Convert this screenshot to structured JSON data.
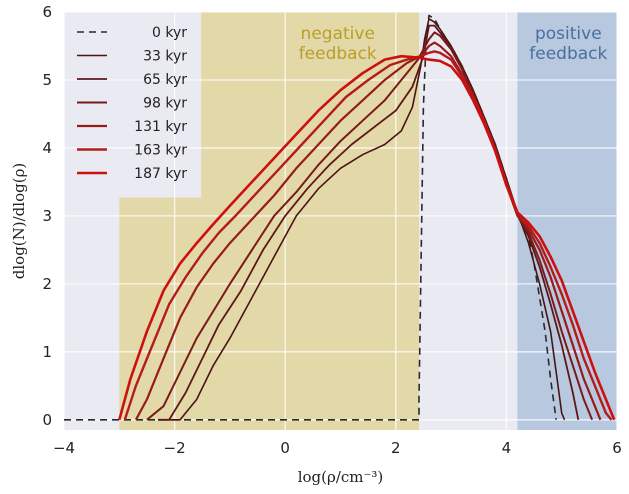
{
  "chart_data": {
    "type": "line",
    "xlabel": "log(ρ/cm⁻³)",
    "ylabel": "dlog(N)/dlog(ρ)",
    "xlim": [
      -4,
      6
    ],
    "ylim": [
      -0.15,
      6
    ],
    "xticks": [
      "−4",
      "−2",
      "0",
      "2",
      "4",
      "6"
    ],
    "yticks": [
      "0",
      "1",
      "2",
      "3",
      "4",
      "5",
      "6"
    ],
    "grid": true,
    "legend_position": "top-left",
    "shaded_regions": [
      {
        "label": "negative feedback",
        "color": "#e3d8a8",
        "text_color": "#b8a02a",
        "parts": [
          {
            "x0": -3.0,
            "x1": -1.52,
            "y0": -0.15,
            "y1": 3.27
          },
          {
            "x0": -1.52,
            "x1": 2.42,
            "y0": -0.15,
            "y1": 6
          }
        ]
      },
      {
        "label": "positive feedback",
        "color": "#b8c8df",
        "text_color": "#4a6fa0",
        "parts": [
          {
            "x0": 4.2,
            "x1": 6.0,
            "y0": -0.15,
            "y1": 6
          }
        ]
      }
    ],
    "annotations": [
      {
        "lines": [
          "negative",
          "feedback"
        ],
        "x": 0.95,
        "y": 5.6,
        "color": "#b8a02a"
      },
      {
        "lines": [
          "positive",
          "feedback"
        ],
        "x": 5.12,
        "y": 5.6,
        "color": "#4a6fa0"
      }
    ],
    "series": [
      {
        "name": "0 kyr",
        "color": "#2a2a2a",
        "width": 1.6,
        "dash": "7,5",
        "x": [
          -4.0,
          2.42,
          2.42,
          2.5,
          2.55,
          2.6,
          2.7,
          2.8,
          3.0,
          3.2,
          3.4,
          3.6,
          3.8,
          4.0,
          4.2,
          4.4,
          4.5,
          4.6,
          4.7,
          4.8,
          4.9
        ],
        "y": [
          0,
          0,
          0.3,
          4.6,
          5.6,
          5.95,
          5.9,
          5.75,
          5.5,
          5.2,
          4.85,
          4.45,
          4.05,
          3.55,
          3.0,
          2.7,
          2.3,
          1.8,
          1.3,
          0.6,
          0
        ]
      },
      {
        "name": "33 kyr",
        "color": "#4a1414",
        "width": 1.6,
        "x": [
          -2.1,
          -1.9,
          -1.6,
          -1.3,
          -1.0,
          -0.6,
          -0.2,
          0.2,
          0.6,
          1.0,
          1.4,
          1.8,
          2.1,
          2.3,
          2.45,
          2.52,
          2.6,
          2.7,
          2.8,
          3.0,
          3.2,
          3.4,
          3.6,
          3.8,
          4.0,
          4.2,
          4.4,
          4.6,
          4.8,
          4.9,
          5.0,
          5.05
        ],
        "y": [
          0,
          0,
          0.3,
          0.8,
          1.2,
          1.8,
          2.4,
          3.0,
          3.4,
          3.7,
          3.9,
          4.05,
          4.25,
          4.6,
          5.2,
          5.6,
          5.9,
          5.85,
          5.75,
          5.5,
          5.2,
          4.85,
          4.45,
          4.05,
          3.55,
          3.05,
          2.6,
          2.0,
          1.3,
          0.7,
          0.1,
          0
        ]
      },
      {
        "name": "65 kyr",
        "color": "#5e1717",
        "width": 1.8,
        "x": [
          -2.3,
          -2.1,
          -1.8,
          -1.5,
          -1.2,
          -0.8,
          -0.4,
          0.0,
          0.4,
          0.8,
          1.2,
          1.6,
          2.0,
          2.3,
          2.5,
          2.6,
          2.7,
          2.8,
          3.0,
          3.2,
          3.4,
          3.6,
          3.8,
          4.0,
          4.2,
          4.4,
          4.6,
          4.8,
          5.0,
          5.2,
          5.3
        ],
        "y": [
          0,
          0,
          0.4,
          0.9,
          1.4,
          1.9,
          2.5,
          3.0,
          3.4,
          3.75,
          4.05,
          4.3,
          4.55,
          4.9,
          5.35,
          5.8,
          5.8,
          5.7,
          5.48,
          5.18,
          4.82,
          4.42,
          4.0,
          3.5,
          3.05,
          2.7,
          2.25,
          1.7,
          1.1,
          0.4,
          0
        ]
      },
      {
        "name": "98 kyr",
        "color": "#7a1a1a",
        "width": 2.0,
        "x": [
          -2.5,
          -2.2,
          -1.9,
          -1.6,
          -1.3,
          -1.0,
          -0.6,
          -0.2,
          0.2,
          0.6,
          1.0,
          1.4,
          1.8,
          2.1,
          2.4,
          2.6,
          2.7,
          2.8,
          3.0,
          3.2,
          3.4,
          3.6,
          3.8,
          4.0,
          4.2,
          4.4,
          4.6,
          4.8,
          5.0,
          5.2,
          5.4,
          5.55
        ],
        "y": [
          0,
          0.2,
          0.7,
          1.2,
          1.6,
          2.0,
          2.5,
          3.0,
          3.35,
          3.75,
          4.1,
          4.4,
          4.7,
          5.0,
          5.3,
          5.6,
          5.7,
          5.65,
          5.45,
          5.15,
          4.8,
          4.4,
          3.98,
          3.48,
          3.02,
          2.75,
          2.35,
          1.85,
          1.3,
          0.8,
          0.3,
          0
        ]
      },
      {
        "name": "131 kyr",
        "color": "#981b1b",
        "width": 2.2,
        "x": [
          -2.7,
          -2.5,
          -2.2,
          -1.9,
          -1.6,
          -1.3,
          -1.0,
          -0.6,
          -0.2,
          0.2,
          0.6,
          1.0,
          1.4,
          1.8,
          2.2,
          2.45,
          2.6,
          2.7,
          2.8,
          3.0,
          3.2,
          3.4,
          3.6,
          3.8,
          4.0,
          4.2,
          4.4,
          4.6,
          4.8,
          5.0,
          5.2,
          5.4,
          5.6,
          5.7
        ],
        "y": [
          0,
          0.3,
          0.9,
          1.5,
          1.95,
          2.3,
          2.6,
          2.95,
          3.3,
          3.7,
          4.05,
          4.4,
          4.7,
          5.0,
          5.25,
          5.35,
          5.5,
          5.55,
          5.5,
          5.35,
          5.08,
          4.75,
          4.38,
          3.95,
          3.45,
          3.0,
          2.8,
          2.5,
          2.1,
          1.6,
          1.1,
          0.6,
          0.2,
          0
        ]
      },
      {
        "name": "163 kyr",
        "color": "#b31c1c",
        "width": 2.4,
        "x": [
          -2.9,
          -2.7,
          -2.4,
          -2.1,
          -1.8,
          -1.5,
          -1.2,
          -0.9,
          -0.5,
          -0.1,
          0.3,
          0.7,
          1.1,
          1.5,
          1.9,
          2.2,
          2.45,
          2.6,
          2.7,
          2.8,
          3.0,
          3.2,
          3.4,
          3.6,
          3.8,
          4.0,
          4.2,
          4.4,
          4.6,
          4.8,
          5.0,
          5.2,
          5.4,
          5.6,
          5.8,
          5.9
        ],
        "y": [
          0,
          0.5,
          1.1,
          1.7,
          2.1,
          2.45,
          2.75,
          3.0,
          3.35,
          3.7,
          4.05,
          4.4,
          4.75,
          5.0,
          5.22,
          5.3,
          5.35,
          5.4,
          5.42,
          5.4,
          5.3,
          5.05,
          4.75,
          4.4,
          3.98,
          3.48,
          3.05,
          2.85,
          2.6,
          2.25,
          1.85,
          1.4,
          0.9,
          0.5,
          0.1,
          0
        ]
      },
      {
        "name": "187 kyr",
        "color": "#cc1010",
        "width": 2.6,
        "x": [
          -3.0,
          -2.8,
          -2.5,
          -2.2,
          -1.9,
          -1.6,
          -1.3,
          -1.0,
          -0.6,
          -0.2,
          0.2,
          0.6,
          1.0,
          1.4,
          1.8,
          2.1,
          2.4,
          2.6,
          2.8,
          3.0,
          3.2,
          3.4,
          3.6,
          3.8,
          4.0,
          4.2,
          4.4,
          4.6,
          4.8,
          5.0,
          5.2,
          5.4,
          5.6,
          5.8,
          5.95
        ],
        "y": [
          0,
          0.6,
          1.3,
          1.9,
          2.3,
          2.6,
          2.88,
          3.15,
          3.5,
          3.85,
          4.2,
          4.55,
          4.85,
          5.1,
          5.3,
          5.35,
          5.33,
          5.3,
          5.28,
          5.2,
          5.0,
          4.7,
          4.35,
          3.95,
          3.45,
          3.05,
          2.9,
          2.7,
          2.4,
          2.05,
          1.6,
          1.15,
          0.7,
          0.3,
          0
        ]
      }
    ]
  }
}
